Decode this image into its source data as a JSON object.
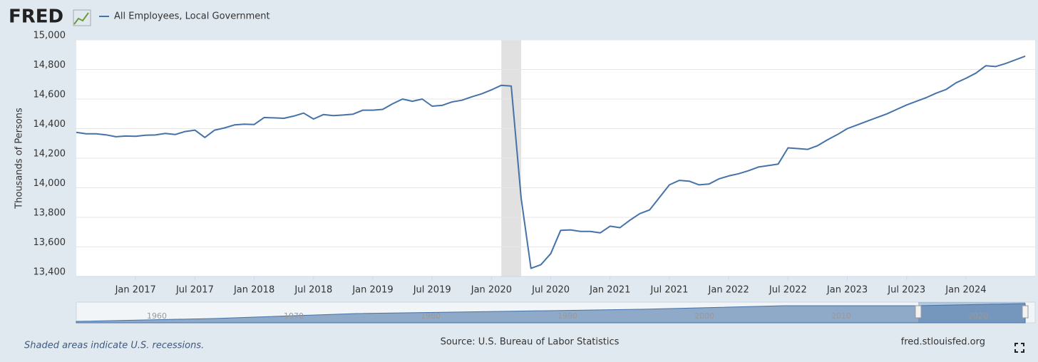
{
  "logo": "FRED",
  "chart_data": {
    "type": "line",
    "title": "All Employees, Local Government",
    "y_label": "Thousands of Persons",
    "source": "Source: U.S. Bureau of Labor Statistics",
    "site": "fred.stlouisfed.org",
    "note": "Shaded areas indicate U.S. recessions.",
    "recessions": [
      [
        "2020-02",
        "2020-04"
      ]
    ],
    "x": [
      "2016-07",
      "2016-08",
      "2016-09",
      "2016-10",
      "2016-11",
      "2016-12",
      "2017-01",
      "2017-02",
      "2017-03",
      "2017-04",
      "2017-05",
      "2017-06",
      "2017-07",
      "2017-08",
      "2017-09",
      "2017-10",
      "2017-11",
      "2017-12",
      "2018-01",
      "2018-02",
      "2018-03",
      "2018-04",
      "2018-05",
      "2018-06",
      "2018-07",
      "2018-08",
      "2018-09",
      "2018-10",
      "2018-11",
      "2018-12",
      "2019-01",
      "2019-02",
      "2019-03",
      "2019-04",
      "2019-05",
      "2019-06",
      "2019-07",
      "2019-08",
      "2019-09",
      "2019-10",
      "2019-11",
      "2019-12",
      "2020-01",
      "2020-02",
      "2020-03",
      "2020-04",
      "2020-05",
      "2020-06",
      "2020-07",
      "2020-08",
      "2020-09",
      "2020-10",
      "2020-11",
      "2020-12",
      "2021-01",
      "2021-02",
      "2021-03",
      "2021-04",
      "2021-05",
      "2021-06",
      "2021-07",
      "2021-08",
      "2021-09",
      "2021-10",
      "2021-11",
      "2021-12",
      "2022-01",
      "2022-02",
      "2022-03",
      "2022-04",
      "2022-05",
      "2022-06",
      "2022-07",
      "2022-08",
      "2022-09",
      "2022-10",
      "2022-11",
      "2022-12",
      "2023-01",
      "2023-02",
      "2023-03",
      "2023-04",
      "2023-05",
      "2023-06",
      "2023-07",
      "2023-08",
      "2023-09",
      "2023-10",
      "2023-11",
      "2023-12",
      "2024-01",
      "2024-02",
      "2024-03",
      "2024-04",
      "2024-05",
      "2024-06",
      "2024-07"
    ],
    "series": [
      {
        "name": "All Employees, Local Government",
        "color": "#4572a7",
        "values": [
          14375,
          14365,
          14365,
          14358,
          14345,
          14350,
          14348,
          14355,
          14357,
          14367,
          14360,
          14380,
          14390,
          14340,
          14390,
          14405,
          14425,
          14430,
          14428,
          14475,
          14473,
          14470,
          14485,
          14505,
          14465,
          14495,
          14488,
          14492,
          14498,
          14525,
          14525,
          14530,
          14568,
          14600,
          14585,
          14600,
          14552,
          14557,
          14580,
          14592,
          14615,
          14635,
          14662,
          14693,
          14688,
          13930,
          13455,
          13480,
          13555,
          13712,
          13715,
          13705,
          13705,
          13695,
          13740,
          13730,
          13780,
          13825,
          13850,
          13935,
          14020,
          14050,
          14045,
          14020,
          14025,
          14060,
          14080,
          14095,
          14115,
          14140,
          14150,
          14160,
          14270,
          14265,
          14260,
          14285,
          14325,
          14360,
          14400,
          14425,
          14450,
          14475,
          14500,
          14530,
          14560,
          14585,
          14610,
          14640,
          14665,
          14710,
          14740,
          14775,
          14825,
          14820,
          14840,
          14865,
          14890
        ]
      }
    ],
    "xlim": [
      "2016-07",
      "2024-08"
    ],
    "xticks": [
      {
        "value": "2017-01",
        "label": "Jan 2017"
      },
      {
        "value": "2017-07",
        "label": "Jul 2017"
      },
      {
        "value": "2018-01",
        "label": "Jan 2018"
      },
      {
        "value": "2018-07",
        "label": "Jul 2018"
      },
      {
        "value": "2019-01",
        "label": "Jan 2019"
      },
      {
        "value": "2019-07",
        "label": "Jul 2019"
      },
      {
        "value": "2020-01",
        "label": "Jan 2020"
      },
      {
        "value": "2020-07",
        "label": "Jul 2020"
      },
      {
        "value": "2021-01",
        "label": "Jan 2021"
      },
      {
        "value": "2021-07",
        "label": "Jul 2021"
      },
      {
        "value": "2022-01",
        "label": "Jan 2022"
      },
      {
        "value": "2022-07",
        "label": "Jul 2022"
      },
      {
        "value": "2023-01",
        "label": "Jan 2023"
      },
      {
        "value": "2023-07",
        "label": "Jul 2023"
      },
      {
        "value": "2024-01",
        "label": "Jan 2024"
      }
    ],
    "ylim": [
      13400,
      15000
    ],
    "yticks": [
      {
        "value": 13400,
        "label": "13,400"
      },
      {
        "value": 13600,
        "label": "13,600"
      },
      {
        "value": 13800,
        "label": "13,800"
      },
      {
        "value": 14000,
        "label": "14,000"
      },
      {
        "value": 14200,
        "label": "14,200"
      },
      {
        "value": 14400,
        "label": "14,400"
      },
      {
        "value": 14600,
        "label": "14,600"
      },
      {
        "value": 14800,
        "label": "14,800"
      },
      {
        "value": 15000,
        "label": "15,000"
      }
    ],
    "grid": true,
    "navigator_labels": [
      "1960",
      "1970",
      "1980",
      "1990",
      "2000",
      "2010",
      "2020"
    ]
  }
}
